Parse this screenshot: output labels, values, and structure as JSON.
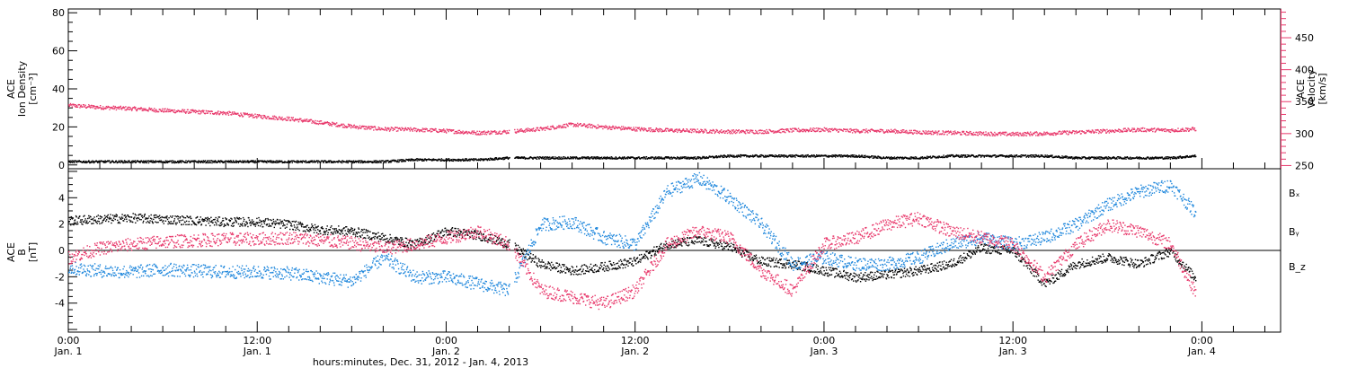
{
  "colors": {
    "black": "#000000",
    "pink": "#e8386b",
    "blue": "#1f87dc"
  },
  "chart_data": [
    {
      "type": "scatter",
      "panel": "top",
      "ylabel_left": [
        "ACE",
        "Ion Density",
        "[cm⁻³]"
      ],
      "ylabel_right": [
        "ACE",
        "Velocity",
        "[km/s]"
      ],
      "ylim_left": [
        -2,
        82
      ],
      "yticks_left": [
        "0",
        "20",
        "40",
        "60",
        "80"
      ],
      "ylim_right": [
        245,
        495
      ],
      "yticks_right": [
        "250",
        "300",
        "350",
        "400",
        "450"
      ],
      "x_hours": [
        0,
        2,
        4,
        6,
        8,
        10,
        12,
        14,
        16,
        18,
        20,
        22,
        24,
        26,
        28,
        30,
        32,
        34,
        36,
        38,
        40,
        42,
        44,
        46,
        48,
        50,
        52,
        54,
        56,
        58,
        60,
        62,
        64,
        66,
        68,
        70,
        71.5
      ],
      "series": [
        {
          "name": "",
          "color": "#e8386b",
          "axis": "right",
          "values": [
            345,
            342,
            340,
            337,
            335,
            333,
            328,
            324,
            318,
            312,
            308,
            307,
            305,
            302,
            304,
            308,
            315,
            311,
            308,
            306,
            305,
            304,
            304,
            306,
            307,
            305,
            305,
            303,
            302,
            301,
            300,
            301,
            303,
            305,
            307,
            306,
            308
          ]
        },
        {
          "name": "",
          "color": "#000000",
          "axis": "left",
          "values": [
            2,
            2,
            2,
            2,
            2,
            2,
            2,
            2,
            2,
            2,
            2,
            3,
            3,
            3,
            4,
            4,
            4,
            4,
            4,
            4,
            4,
            5,
            5,
            5,
            5,
            5,
            4,
            4,
            5,
            5,
            5,
            5,
            4,
            4,
            4,
            4,
            5
          ]
        }
      ]
    },
    {
      "type": "scatter",
      "panel": "bottom",
      "ylabel_left": [
        "ACE",
        "B",
        "[nT]"
      ],
      "ylim": [
        -6.2,
        6.2
      ],
      "yticks": [
        "-4",
        "-2",
        "0",
        "2",
        "4"
      ],
      "x_hours": [
        0,
        2,
        4,
        6,
        8,
        10,
        12,
        14,
        16,
        18,
        20,
        22,
        24,
        26,
        28,
        30,
        32,
        34,
        36,
        38,
        40,
        42,
        44,
        46,
        48,
        50,
        52,
        54,
        56,
        58,
        60,
        62,
        64,
        66,
        68,
        70,
        71.5
      ],
      "series": [
        {
          "name": "Bₓ",
          "color": "#000000",
          "values": [
            2.3,
            2.4,
            2.5,
            2.4,
            2.3,
            2.2,
            2.2,
            2.0,
            1.6,
            1.5,
            1.0,
            0.5,
            1.5,
            1.2,
            0.5,
            -1.0,
            -1.5,
            -1.2,
            -0.8,
            0.5,
            0.8,
            0.3,
            -0.8,
            -1.0,
            -1.5,
            -2.0,
            -1.8,
            -1.5,
            -1.0,
            0.2,
            0.0,
            -2.5,
            -1.0,
            -0.5,
            -1.0,
            0.0,
            -2.0
          ]
        },
        {
          "name": "Bᵧ",
          "color": "#1f87dc",
          "values": [
            -1.3,
            -1.5,
            -1.6,
            -1.4,
            -1.5,
            -1.6,
            -1.6,
            -1.7,
            -2.0,
            -2.3,
            -0.5,
            -2.0,
            -2.0,
            -2.5,
            -3.0,
            2.0,
            2.2,
            1.0,
            0.5,
            4.5,
            5.5,
            4.0,
            2.0,
            -1.0,
            -0.5,
            -1.0,
            -1.0,
            -0.5,
            0.5,
            1.0,
            0.5,
            1.0,
            2.0,
            3.5,
            4.5,
            5.0,
            3.0
          ]
        },
        {
          "name": "B_z",
          "color": "#e8386b",
          "values": [
            -0.5,
            0.2,
            0.5,
            0.7,
            0.8,
            0.9,
            0.9,
            1.0,
            0.8,
            0.6,
            0.2,
            0.5,
            1.0,
            1.5,
            0.5,
            -3.0,
            -3.5,
            -4.0,
            -3.0,
            0.5,
            1.5,
            1.0,
            -1.5,
            -3.0,
            0.5,
            1.0,
            2.0,
            2.5,
            1.5,
            1.0,
            0.5,
            -2.0,
            0.5,
            2.0,
            1.5,
            0.5,
            -3.0
          ]
        }
      ],
      "legend": [
        "Bₓ",
        "Bᵧ",
        "B_z"
      ]
    }
  ],
  "x_axis": {
    "ticks": [
      {
        "hour": 0,
        "time": "0:00",
        "day": "Jan. 1"
      },
      {
        "hour": 12,
        "time": "12:00",
        "day": "Jan. 1"
      },
      {
        "hour": 24,
        "time": "0:00",
        "day": "Jan. 2"
      },
      {
        "hour": 36,
        "time": "12:00",
        "day": "Jan. 2"
      },
      {
        "hour": 48,
        "time": "0:00",
        "day": "Jan. 3"
      },
      {
        "hour": 60,
        "time": "12:00",
        "day": "Jan. 3"
      },
      {
        "hour": 72,
        "time": "0:00",
        "day": "Jan. 4"
      }
    ],
    "range_hours": [
      0,
      77
    ],
    "title": "hours:minutes, Dec. 31, 2012 - Jan.  4, 2013"
  }
}
